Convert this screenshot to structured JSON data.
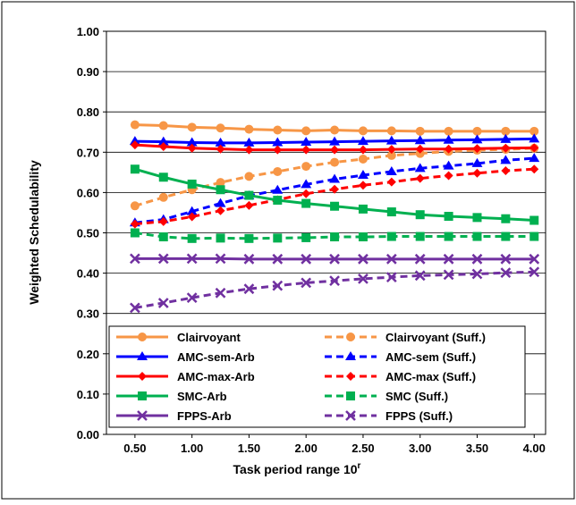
{
  "chart_data": {
    "type": "line",
    "xlabel": "Task period range 10",
    "xlabel_sup": "r",
    "ylabel": "Weighted Schedulability",
    "xlim": [
      0.5,
      4.0
    ],
    "ylim": [
      0.0,
      1.0
    ],
    "x_ticks": [
      "0.50",
      "1.00",
      "1.50",
      "2.00",
      "2.50",
      "3.00",
      "3.50",
      "4.00"
    ],
    "y_ticks": [
      "0.00",
      "0.10",
      "0.20",
      "0.30",
      "0.40",
      "0.50",
      "0.60",
      "0.70",
      "0.80",
      "0.90",
      "1.00"
    ],
    "grid": "horizontal",
    "legend_position": "lower-center",
    "x": [
      0.5,
      0.75,
      1.0,
      1.25,
      1.5,
      1.75,
      2.0,
      2.25,
      2.5,
      2.75,
      3.0,
      3.25,
      3.5,
      3.75,
      4.0
    ],
    "series": [
      {
        "name": "Clairvoyant",
        "color": "#f79646",
        "dash": "solid",
        "marker": "circle",
        "values": [
          0.768,
          0.766,
          0.762,
          0.76,
          0.757,
          0.755,
          0.753,
          0.755,
          0.753,
          0.753,
          0.752,
          0.752,
          0.752,
          0.752,
          0.752
        ]
      },
      {
        "name": "Clairvoyant (Suff.)",
        "color": "#f79646",
        "dash": "dashed",
        "marker": "circle",
        "values": [
          0.567,
          0.588,
          0.607,
          0.625,
          0.64,
          0.652,
          0.665,
          0.675,
          0.683,
          0.692,
          0.697,
          0.702,
          0.705,
          0.707,
          0.71
        ]
      },
      {
        "name": "AMC-sem-Arb",
        "color": "#0000ff",
        "dash": "solid",
        "marker": "tri",
        "values": [
          0.727,
          0.726,
          0.724,
          0.723,
          0.723,
          0.724,
          0.725,
          0.726,
          0.727,
          0.728,
          0.729,
          0.73,
          0.731,
          0.732,
          0.733
        ]
      },
      {
        "name": "AMC-sem (Suff.)",
        "color": "#0000ff",
        "dash": "dashed",
        "marker": "tri",
        "values": [
          0.525,
          0.533,
          0.553,
          0.573,
          0.592,
          0.606,
          0.62,
          0.633,
          0.643,
          0.652,
          0.66,
          0.666,
          0.672,
          0.68,
          0.685
        ]
      },
      {
        "name": "AMC-max-Arb",
        "color": "#ff0000",
        "dash": "solid",
        "marker": "diamond",
        "values": [
          0.718,
          0.714,
          0.71,
          0.708,
          0.706,
          0.706,
          0.706,
          0.706,
          0.706,
          0.707,
          0.708,
          0.708,
          0.709,
          0.71,
          0.711
        ]
      },
      {
        "name": "AMC-max (Suff.)",
        "color": "#ff0000",
        "dash": "dashed",
        "marker": "diamond",
        "values": [
          0.522,
          0.528,
          0.54,
          0.555,
          0.568,
          0.582,
          0.597,
          0.608,
          0.618,
          0.626,
          0.635,
          0.642,
          0.648,
          0.654,
          0.658
        ]
      },
      {
        "name": "SMC-Arb",
        "color": "#00b050",
        "dash": "solid",
        "marker": "square",
        "values": [
          0.658,
          0.638,
          0.621,
          0.607,
          0.593,
          0.581,
          0.573,
          0.566,
          0.559,
          0.552,
          0.545,
          0.541,
          0.538,
          0.535,
          0.531
        ]
      },
      {
        "name": "SMC (Suff.)",
        "color": "#00b050",
        "dash": "dashed",
        "marker": "square",
        "values": [
          0.5,
          0.49,
          0.486,
          0.487,
          0.486,
          0.487,
          0.488,
          0.49,
          0.49,
          0.491,
          0.491,
          0.491,
          0.491,
          0.491,
          0.491
        ]
      },
      {
        "name": "FPPS-Arb",
        "color": "#7030a0",
        "dash": "solid",
        "marker": "x",
        "values": [
          0.436,
          0.436,
          0.436,
          0.436,
          0.435,
          0.435,
          0.435,
          0.435,
          0.435,
          0.435,
          0.435,
          0.435,
          0.435,
          0.435,
          0.435
        ]
      },
      {
        "name": "FPPS (Suff.)",
        "color": "#7030a0",
        "dash": "dashed",
        "marker": "x",
        "values": [
          0.314,
          0.326,
          0.339,
          0.351,
          0.361,
          0.369,
          0.376,
          0.381,
          0.386,
          0.39,
          0.394,
          0.396,
          0.398,
          0.401,
          0.403
        ]
      }
    ]
  }
}
